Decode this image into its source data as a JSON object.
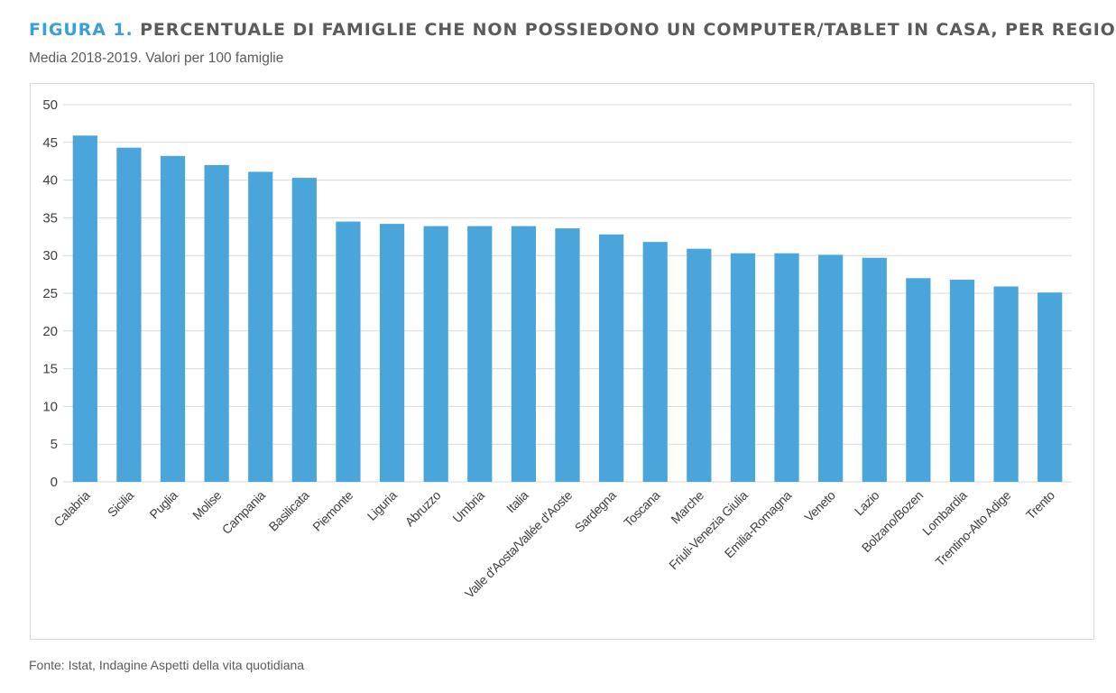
{
  "header": {
    "figure_label": "FIGURA 1.",
    "title": "PERCENTUALE DI FAMIGLIE CHE NON POSSIEDONO UN COMPUTER/TABLET IN CASA, PER REGIONE.",
    "subtitle": "Media 2018-2019. Valori per 100 famiglie"
  },
  "footer": {
    "source": "Fonte: Istat, Indagine Aspetti della vita quotidiana"
  },
  "colors": {
    "bar": "#4aa5da",
    "figure_label": "#3a9fd6",
    "text": "#5b5b5b",
    "grid": "#d9d9d9",
    "axis_text": "#404040"
  },
  "chart_data": {
    "type": "bar",
    "title": "PERCENTUALE DI FAMIGLIE CHE NON POSSIEDONO UN COMPUTER/TABLET IN CASA, PER REGIONE.",
    "subtitle": "Media 2018-2019. Valori per 100 famiglie",
    "xlabel": "",
    "ylabel": "",
    "ylim": [
      0,
      50
    ],
    "yticks": [
      0,
      5,
      10,
      15,
      20,
      25,
      30,
      35,
      40,
      45,
      50
    ],
    "grid": true,
    "legend": "none",
    "categories": [
      "Calabria",
      "Sicilia",
      "Puglia",
      "Molise",
      "Campania",
      "Basilicata",
      "Piemonte",
      "Liguria",
      "Abruzzo",
      "Umbria",
      "Italia",
      "Valle d'Aosta/Vallée d'Aoste",
      "Sardegna",
      "Toscana",
      "Marche",
      "Friuli-Venezia Giulia",
      "Emilia-Romagna",
      "Veneto",
      "Lazio",
      "Bolzano/Bozen",
      "Lombardia",
      "Trentino-Alto Adige",
      "Trento"
    ],
    "values": [
      45.9,
      44.3,
      43.2,
      42.0,
      41.1,
      40.3,
      34.5,
      34.2,
      33.9,
      33.9,
      33.9,
      33.6,
      32.8,
      31.8,
      30.9,
      30.3,
      30.3,
      30.1,
      29.7,
      27.0,
      26.8,
      25.9,
      25.1
    ]
  }
}
